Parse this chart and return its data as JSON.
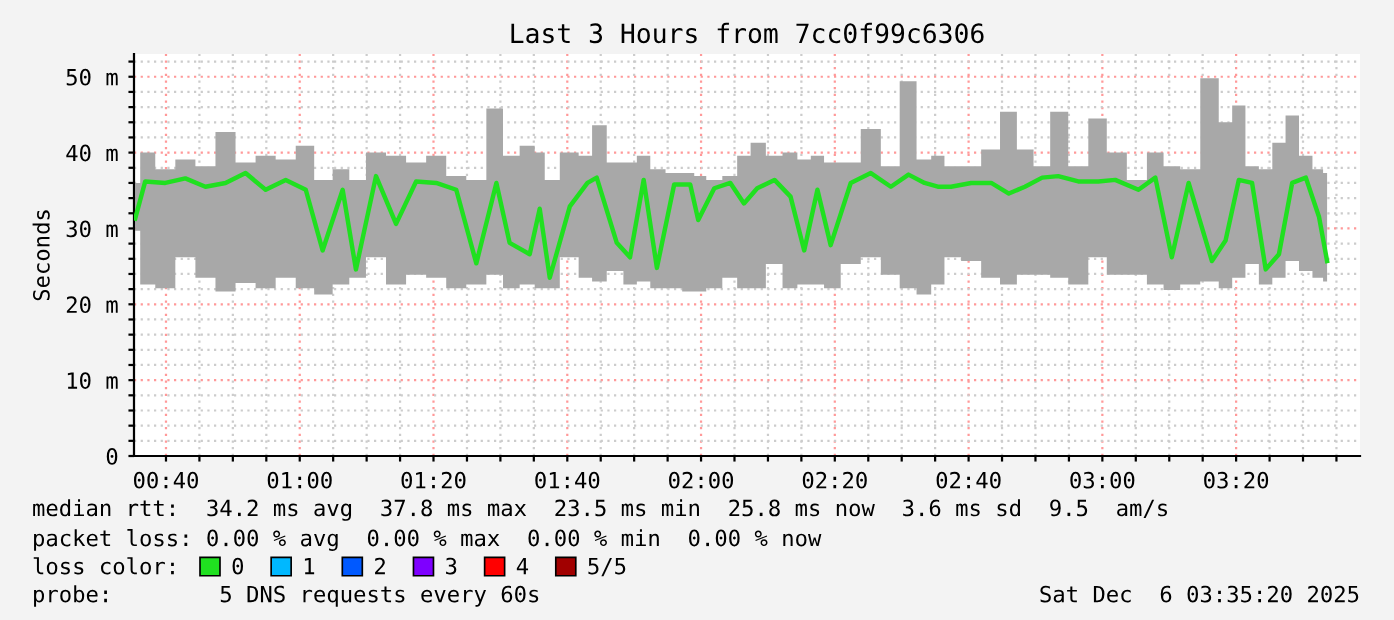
{
  "chart_data": {
    "type": "line",
    "title": "Last 3 Hours from 7cc0f99c6306",
    "ylabel": "Seconds",
    "x": [
      0.59,
      0.615,
      0.665,
      0.715,
      0.765,
      0.815,
      0.865,
      0.915,
      0.965,
      1.015,
      1.057,
      1.107,
      1.14,
      1.19,
      1.24,
      1.29,
      1.34,
      1.39,
      1.44,
      1.49,
      1.523,
      1.573,
      1.598,
      1.623,
      1.673,
      1.717,
      1.74,
      1.79,
      1.823,
      1.857,
      1.89,
      1.933,
      1.973,
      1.993,
      2.033,
      2.073,
      2.107,
      2.14,
      2.183,
      2.223,
      2.257,
      2.29,
      2.323,
      2.373,
      2.423,
      2.473,
      2.517,
      2.557,
      2.59,
      2.623,
      2.673,
      2.723,
      2.767,
      2.807,
      2.85,
      2.89,
      2.94,
      2.99,
      3.032,
      3.09,
      3.132,
      3.173,
      3.215,
      3.273,
      3.307,
      3.34,
      3.373,
      3.407,
      3.44,
      3.473,
      3.507,
      3.54,
      3.56
    ],
    "series": [
      {
        "name": "0",
        "color": "#20e020",
        "values": [
          31.3,
          36.2,
          36,
          36.6,
          35.5,
          36,
          37.3,
          35.1,
          36.4,
          35.1,
          27.1,
          35.1,
          24.6,
          36.9,
          30.6,
          36.2,
          36,
          35.1,
          25.4,
          36,
          28.1,
          26.6,
          32.6,
          23.5,
          32.9,
          36,
          36.7,
          28.1,
          26.2,
          36.4,
          24.8,
          35.8,
          35.8,
          31.1,
          35.3,
          36,
          33.3,
          35.3,
          36.4,
          34.2,
          27.1,
          35.1,
          27.8,
          36,
          37.3,
          35.5,
          37.1,
          36,
          35.5,
          35.5,
          36,
          36,
          34.6,
          35.5,
          36.7,
          36.9,
          36.2,
          36.2,
          36.4,
          35.1,
          36.7,
          26.2,
          36,
          25.7,
          28.4,
          36.4,
          36,
          24.6,
          26.6,
          36,
          36.7,
          31.5,
          25.7
        ],
        "lower": [
          29.7,
          22.6,
          22.1,
          26.2,
          23.5,
          21.7,
          22.8,
          22.1,
          23.5,
          22.1,
          21.3,
          22.6,
          23.5,
          26.2,
          22.6,
          23.9,
          23.5,
          22.1,
          22.6,
          23.9,
          22.1,
          22.6,
          22.1,
          22.1,
          26.2,
          23.5,
          23,
          24.4,
          22.6,
          23,
          22.1,
          22.1,
          21.7,
          21.7,
          22.1,
          23.5,
          22.1,
          22.1,
          25.3,
          22.1,
          22.6,
          22.6,
          22.1,
          25.3,
          26.2,
          23.9,
          22.1,
          21.3,
          22.6,
          26.2,
          25.7,
          23.5,
          22.6,
          23.9,
          23.9,
          23.5,
          22.6,
          26.2,
          23.9,
          23.9,
          22.6,
          21.9,
          22.6,
          23,
          22.1,
          23.5,
          25.3,
          22.6,
          23.5,
          25.7,
          24.4,
          23.5,
          23
        ],
        "upper": [
          36,
          40,
          37.8,
          39.1,
          38.2,
          42.7,
          38.7,
          39.6,
          39.1,
          40.9,
          36.4,
          37.8,
          36.4,
          40,
          39.6,
          38.7,
          39.6,
          36.9,
          36.4,
          45.8,
          39.6,
          40.9,
          40,
          36.4,
          40,
          39.6,
          43.6,
          38.7,
          38.7,
          39.6,
          37.8,
          37.3,
          37.3,
          36.9,
          36.4,
          36.9,
          39.6,
          41.3,
          39.6,
          40,
          39.1,
          39.6,
          38.7,
          38.7,
          43.1,
          38.2,
          49.4,
          39.1,
          39.6,
          38.2,
          38.2,
          40.4,
          45.4,
          40.4,
          38.2,
          45.4,
          38.2,
          44.5,
          40,
          36.4,
          40,
          38.2,
          37.8,
          49.8,
          44,
          46.2,
          38.2,
          37.8,
          41.3,
          44.9,
          39.6,
          37.8,
          37.3
        ]
      },
      {
        "name": "1",
        "color": "#00b8ff",
        "values": [
          null,
          null,
          null,
          null,
          null,
          null,
          null,
          null,
          null,
          null,
          null,
          null,
          null,
          null,
          null,
          null,
          null,
          null,
          null,
          null,
          null,
          null,
          null,
          null,
          null,
          null,
          null,
          null,
          null,
          null,
          null,
          null,
          null,
          null,
          null,
          null,
          null,
          null,
          null,
          null,
          null,
          null,
          null,
          null,
          null,
          null,
          null,
          null,
          null,
          null,
          null,
          null,
          null,
          null,
          null,
          null,
          null,
          null,
          null,
          null,
          null,
          null,
          null,
          null,
          null,
          null,
          null,
          null,
          null,
          null,
          null,
          null,
          null
        ]
      },
      {
        "name": "2",
        "color": "#0059ff",
        "values": [
          null,
          null,
          null,
          null,
          null,
          null,
          null,
          null,
          null,
          null,
          null,
          null,
          null,
          null,
          null,
          null,
          null,
          null,
          null,
          null,
          null,
          null,
          null,
          null,
          null,
          null,
          null,
          null,
          null,
          null,
          null,
          null,
          null,
          null,
          null,
          null,
          null,
          null,
          null,
          null,
          null,
          null,
          null,
          null,
          null,
          null,
          null,
          null,
          null,
          null,
          null,
          null,
          null,
          null,
          null,
          null,
          null,
          null,
          null,
          null,
          null,
          null,
          null,
          null,
          null,
          null,
          null,
          null,
          null,
          null,
          null,
          null,
          null
        ]
      },
      {
        "name": "3",
        "color": "#7e00ff",
        "values": [
          null,
          null,
          null,
          null,
          null,
          null,
          null,
          null,
          null,
          null,
          null,
          null,
          null,
          null,
          null,
          null,
          null,
          null,
          null,
          null,
          null,
          null,
          null,
          null,
          null,
          null,
          null,
          null,
          null,
          null,
          null,
          null,
          null,
          null,
          null,
          null,
          null,
          null,
          null,
          null,
          null,
          null,
          null,
          null,
          null,
          null,
          null,
          null,
          null,
          null,
          null,
          null,
          null,
          null,
          null,
          null,
          null,
          null,
          null,
          null,
          null,
          null,
          null,
          null,
          null,
          null,
          null,
          null,
          null,
          null,
          null,
          null,
          null
        ]
      },
      {
        "name": "4",
        "color": "#ff0000",
        "values": [
          null,
          null,
          null,
          null,
          null,
          null,
          null,
          null,
          null,
          null,
          null,
          null,
          null,
          null,
          null,
          null,
          null,
          null,
          null,
          null,
          null,
          null,
          null,
          null,
          null,
          null,
          null,
          null,
          null,
          null,
          null,
          null,
          null,
          null,
          null,
          null,
          null,
          null,
          null,
          null,
          null,
          null,
          null,
          null,
          null,
          null,
          null,
          null,
          null,
          null,
          null,
          null,
          null,
          null,
          null,
          null,
          null,
          null,
          null,
          null,
          null,
          null,
          null,
          null,
          null,
          null,
          null,
          null,
          null,
          null,
          null,
          null,
          null
        ]
      },
      {
        "name": "5/5",
        "color": "#a10000",
        "values": [
          null,
          null,
          null,
          null,
          null,
          null,
          null,
          null,
          null,
          null,
          null,
          null,
          null,
          null,
          null,
          null,
          null,
          null,
          null,
          null,
          null,
          null,
          null,
          null,
          null,
          null,
          null,
          null,
          null,
          null,
          null,
          null,
          null,
          null,
          null,
          null,
          null,
          null,
          null,
          null,
          null,
          null,
          null,
          null,
          null,
          null,
          null,
          null,
          null,
          null,
          null,
          null,
          null,
          null,
          null,
          null,
          null,
          null,
          null,
          null,
          null,
          null,
          null,
          null,
          null,
          null,
          null,
          null,
          null,
          null,
          null,
          null,
          null
        ]
      }
    ],
    "xlim": [
      0.587,
      3.642
    ],
    "ylim": [
      0,
      53
    ],
    "xticks": [
      {
        "value": 0.6667,
        "label": "00:40"
      },
      {
        "value": 0.75,
        "label": null
      },
      {
        "value": 0.8333,
        "label": null
      },
      {
        "value": 0.9167,
        "label": null
      },
      {
        "value": 1.0,
        "label": "01:00"
      },
      {
        "value": 1.0833,
        "label": null
      },
      {
        "value": 1.1667,
        "label": null
      },
      {
        "value": 1.25,
        "label": null
      },
      {
        "value": 1.3333,
        "label": "01:20"
      },
      {
        "value": 1.4167,
        "label": null
      },
      {
        "value": 1.5,
        "label": null
      },
      {
        "value": 1.5833,
        "label": null
      },
      {
        "value": 1.6667,
        "label": "01:40"
      },
      {
        "value": 1.75,
        "label": null
      },
      {
        "value": 1.8333,
        "label": null
      },
      {
        "value": 1.9167,
        "label": null
      },
      {
        "value": 2.0,
        "label": "02:00"
      },
      {
        "value": 2.0833,
        "label": null
      },
      {
        "value": 2.1667,
        "label": null
      },
      {
        "value": 2.25,
        "label": null
      },
      {
        "value": 2.3333,
        "label": "02:20"
      },
      {
        "value": 2.4167,
        "label": null
      },
      {
        "value": 2.5,
        "label": null
      },
      {
        "value": 2.5833,
        "label": null
      },
      {
        "value": 2.6667,
        "label": "02:40"
      },
      {
        "value": 2.75,
        "label": null
      },
      {
        "value": 2.8333,
        "label": null
      },
      {
        "value": 2.9167,
        "label": null
      },
      {
        "value": 3.0,
        "label": "03:00"
      },
      {
        "value": 3.0833,
        "label": null
      },
      {
        "value": 3.1667,
        "label": null
      },
      {
        "value": 3.25,
        "label": null
      },
      {
        "value": 3.3333,
        "label": "03:20"
      },
      {
        "value": 3.4167,
        "label": null
      },
      {
        "value": 3.5,
        "label": null
      },
      {
        "value": 3.5833,
        "label": null
      }
    ],
    "yticks": [
      0,
      {
        "value": 2,
        "label": null
      },
      {
        "value": 4,
        "label": null
      },
      {
        "value": 6,
        "label": null
      },
      {
        "value": 8,
        "label": null
      },
      {
        "value": 10,
        "label": "10 m"
      },
      {
        "value": 12,
        "label": null
      },
      {
        "value": 14,
        "label": null
      },
      {
        "value": 16,
        "label": null
      },
      {
        "value": 18,
        "label": null
      },
      {
        "value": 20,
        "label": "20 m"
      },
      {
        "value": 22,
        "label": null
      },
      {
        "value": 24,
        "label": null
      },
      {
        "value": 26,
        "label": null
      },
      {
        "value": 28,
        "label": null
      },
      {
        "value": 30,
        "label": "30 m"
      },
      {
        "value": 32,
        "label": null
      },
      {
        "value": 34,
        "label": null
      },
      {
        "value": 36,
        "label": null
      },
      {
        "value": 38,
        "label": null
      },
      {
        "value": 40,
        "label": "40 m"
      },
      {
        "value": 42,
        "label": null
      },
      {
        "value": 44,
        "label": null
      },
      {
        "value": 46,
        "label": null
      },
      {
        "value": 48,
        "label": null
      },
      {
        "value": 50,
        "label": "50 m"
      },
      {
        "value": 52,
        "label": null
      }
    ],
    "grid": true,
    "legend": "bottom",
    "line_style": "solid",
    "annotations": [
      "median rtt:  34.2 ms avg  37.8 ms max  23.5 ms min  25.8 ms now  3.6 ms sd  9.5  am/s",
      "packet loss: 0.00 % avg  0.00 % max  0.00 % min  0.00 % now",
      "loss color:",
      "probe:        5 DNS requests every 60s",
      "Sat Dec  6 03:35:20 2025"
    ]
  }
}
